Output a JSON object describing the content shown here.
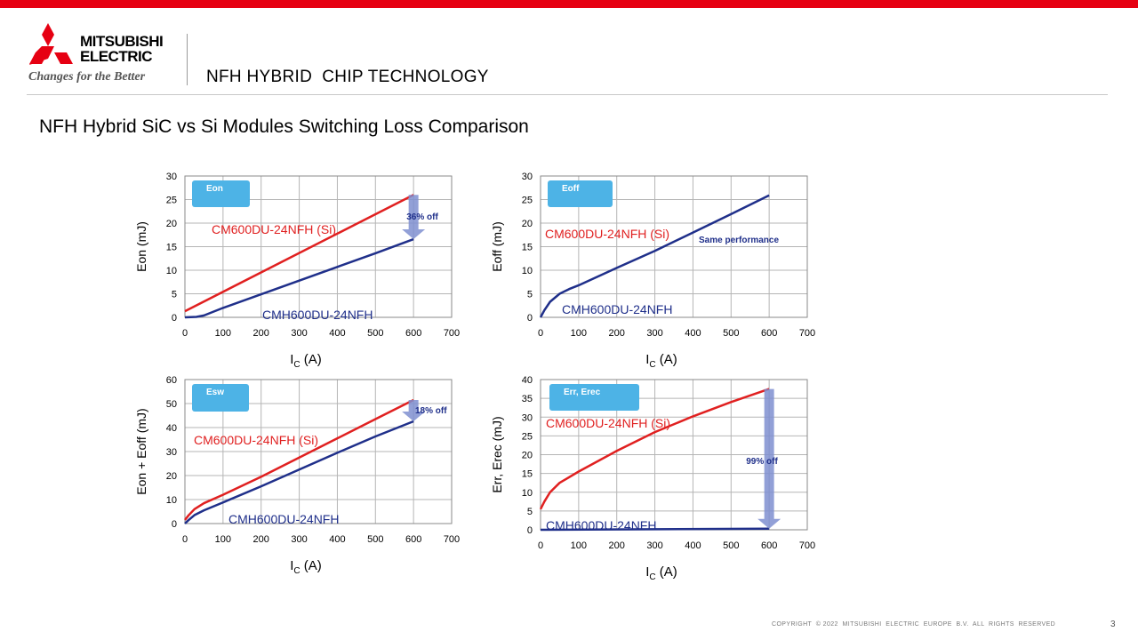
{
  "header": {
    "brand_line1": "MITSUBISHI",
    "brand_line2": "ELECTRIC",
    "tagline": "Changes for the Better",
    "section_title": "NFH HYBRID  CHIP TECHNOLOGY",
    "brand_color": "#e60012"
  },
  "page_title": "NFH Hybrid SiC vs Si Modules Switching Loss Comparison",
  "footer": {
    "copyright": "COPYRIGHT  © 2022  MITSUBISHI  ELECTRIC  EUROPE  B.V.  ALL  RIGHTS  RESERVED",
    "page_number": "3"
  },
  "colors": {
    "si_series": "#e02020",
    "hybrid_series": "#1f2f8a",
    "badge": "#4db3e6",
    "arrow": "#7f8fd0"
  },
  "chart_data": [
    {
      "type": "line",
      "badge": "Eon",
      "xlabel_main": "I",
      "xlabel_sub": "C",
      "xlabel_unit": " (A)",
      "ylabel": "Eon (mJ)",
      "xlim": [
        0,
        700
      ],
      "ylim": [
        0,
        30
      ],
      "xticks": [
        0,
        100,
        200,
        300,
        400,
        500,
        600,
        700
      ],
      "yticks": [
        0,
        5,
        10,
        15,
        20,
        25,
        30
      ],
      "grid": true,
      "series": [
        {
          "name": "CM600DU-24NFH (Si)",
          "color": "#e02020",
          "x": [
            0,
            600
          ],
          "y": [
            1.3,
            26
          ]
        },
        {
          "name": "CMH600DU-24NFH",
          "color": "#1f2f8a",
          "x": [
            0,
            30,
            50,
            100,
            200,
            300,
            400,
            500,
            600
          ],
          "y": [
            0,
            0.1,
            0.4,
            2,
            4.9,
            7.8,
            10.7,
            13.6,
            16.6
          ]
        }
      ],
      "annotation": {
        "text": "36% off",
        "x": 600,
        "y_from": 26,
        "y_to": 16.6
      }
    },
    {
      "type": "line",
      "badge": "Eoff",
      "xlabel_main": "I",
      "xlabel_sub": "C",
      "xlabel_unit": " (A)",
      "ylabel": "Eoff (mJ)",
      "xlim": [
        0,
        700
      ],
      "ylim": [
        0,
        30
      ],
      "xticks": [
        0,
        100,
        200,
        300,
        400,
        500,
        600,
        700
      ],
      "yticks": [
        0,
        5,
        10,
        15,
        20,
        25,
        30
      ],
      "grid": true,
      "series": [
        {
          "name": "CM600DU-24NFH (Si)",
          "color": "#e02020",
          "x": [],
          "y": []
        },
        {
          "name": "CMH600DU-24NFH",
          "color": "#1f2f8a",
          "x": [
            0,
            10,
            25,
            50,
            75,
            100,
            200,
            300,
            400,
            500,
            600
          ],
          "y": [
            0,
            1.5,
            3.3,
            5,
            6,
            6.8,
            10.5,
            14.1,
            18,
            21.9,
            25.9
          ]
        }
      ],
      "annotation": {
        "text": "Same performance"
      }
    },
    {
      "type": "line",
      "badge": "Esw",
      "xlabel_main": "I",
      "xlabel_sub": "C",
      "xlabel_unit": " (A)",
      "ylabel": "Eon + Eoff (mJ)",
      "xlim": [
        0,
        700
      ],
      "ylim": [
        0,
        60
      ],
      "xticks": [
        0,
        100,
        200,
        300,
        400,
        500,
        600,
        700
      ],
      "yticks": [
        0,
        10,
        20,
        30,
        40,
        50,
        60
      ],
      "grid": true,
      "series": [
        {
          "name": "CM600DU-24NFH (Si)",
          "color": "#e02020",
          "x": [
            0,
            10,
            25,
            50,
            100,
            200,
            300,
            400,
            500,
            600
          ],
          "y": [
            1.5,
            3.5,
            6,
            8.5,
            12,
            19.5,
            27.5,
            35.5,
            43.5,
            51.5
          ]
        },
        {
          "name": "CMH600DU-24NFH",
          "color": "#1f2f8a",
          "x": [
            0,
            10,
            25,
            50,
            100,
            200,
            300,
            400,
            500,
            600
          ],
          "y": [
            0,
            1.5,
            3.5,
            5.5,
            8.8,
            15.5,
            22.5,
            29.5,
            36.3,
            42.6
          ]
        }
      ],
      "annotation": {
        "text": "18% off",
        "x": 600,
        "y_from": 51.5,
        "y_to": 42.6
      }
    },
    {
      "type": "line",
      "badge": "Err, Erec",
      "xlabel_main": "I",
      "xlabel_sub": "C",
      "xlabel_unit": " (A)",
      "ylabel": "Err, Erec (mJ)",
      "xlim": [
        0,
        700
      ],
      "ylim": [
        0,
        40
      ],
      "xticks": [
        0,
        100,
        200,
        300,
        400,
        500,
        600,
        700
      ],
      "yticks": [
        0,
        5,
        10,
        15,
        20,
        25,
        30,
        35,
        40
      ],
      "grid": true,
      "series": [
        {
          "name": "CM600DU-24NFH (Si)",
          "color": "#e02020",
          "x": [
            0,
            10,
            25,
            50,
            100,
            200,
            300,
            400,
            500,
            600
          ],
          "y": [
            5.5,
            7.5,
            10,
            12.5,
            15.5,
            21,
            26,
            30.2,
            34,
            37.5
          ]
        },
        {
          "name": "CMH600DU-24NFH",
          "color": "#1f2f8a",
          "x": [
            0,
            600
          ],
          "y": [
            0,
            0.3
          ]
        }
      ],
      "annotation": {
        "text": "99% off",
        "x": 600,
        "y_from": 37.5,
        "y_to": 0.3
      }
    }
  ]
}
